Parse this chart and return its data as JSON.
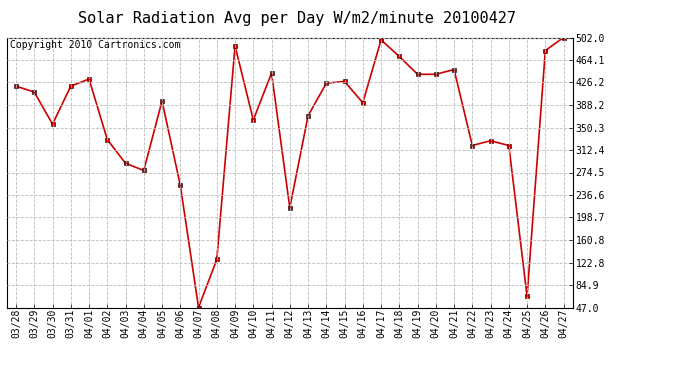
{
  "title": "Solar Radiation Avg per Day W/m2/minute 20100427",
  "copyright": "Copyright 2010 Cartronics.com",
  "labels": [
    "03/28",
    "03/29",
    "03/30",
    "03/31",
    "04/01",
    "04/02",
    "04/03",
    "04/04",
    "04/05",
    "04/06",
    "04/07",
    "04/08",
    "04/09",
    "04/10",
    "04/11",
    "04/12",
    "04/13",
    "04/14",
    "04/15",
    "04/16",
    "04/17",
    "04/18",
    "04/19",
    "04/20",
    "04/21",
    "04/22",
    "04/23",
    "04/24",
    "04/25",
    "04/26",
    "04/27"
  ],
  "values": [
    420,
    410,
    356,
    420,
    432,
    330,
    290,
    278,
    395,
    253,
    47,
    128,
    488,
    363,
    442,
    215,
    370,
    425,
    428,
    392,
    498,
    470,
    440,
    440,
    448,
    320,
    328,
    320,
    66,
    480,
    502
  ],
  "ymin": 47.0,
  "ymax": 502.0,
  "ytick_labels": [
    "502.0",
    "464.1",
    "426.2",
    "388.2",
    "350.3",
    "312.4",
    "274.5",
    "236.6",
    "198.7",
    "160.8",
    "122.8",
    "84.9",
    "47.0"
  ],
  "ytick_values": [
    502.0,
    464.1,
    426.2,
    388.2,
    350.3,
    312.4,
    274.5,
    236.6,
    198.7,
    160.8,
    122.8,
    84.9,
    47.0
  ],
  "line_color": "#cc0000",
  "marker_color": "#000000",
  "bg_color": "#ffffff",
  "grid_color": "#bbbbbb",
  "title_fontsize": 11,
  "copyright_fontsize": 7,
  "tick_fontsize": 7
}
